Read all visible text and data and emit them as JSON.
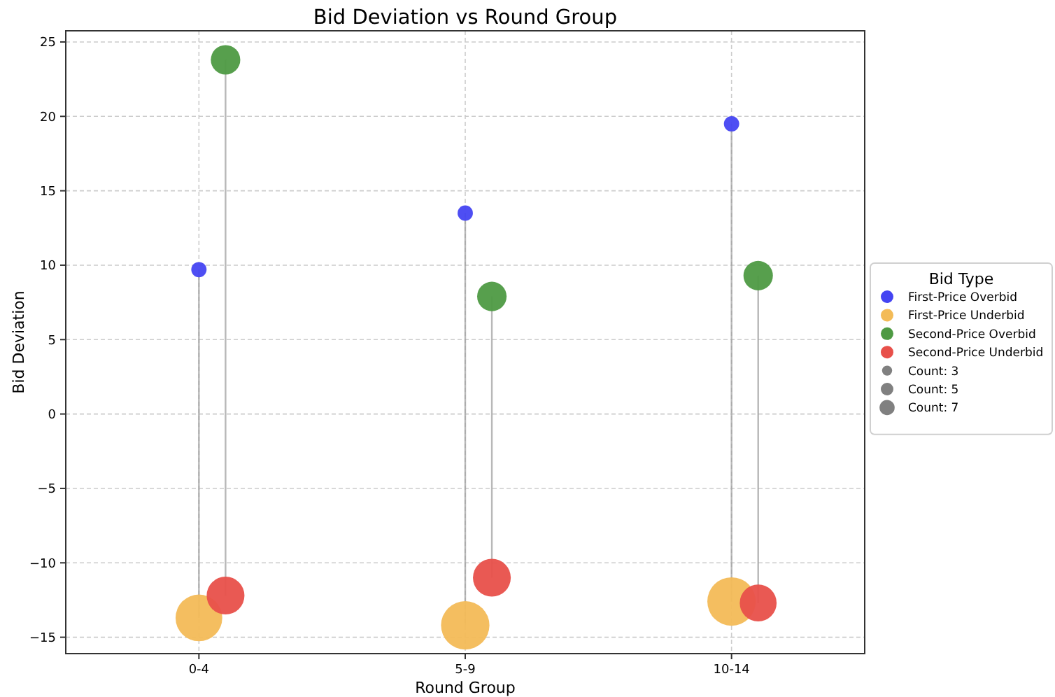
{
  "chart_data": {
    "type": "bubble",
    "title": "Bid Deviation vs Round Group",
    "xlabel": "Round Group",
    "ylabel": "Bid Deviation",
    "legend_title": "Bid Type",
    "categories": [
      "0-4",
      "5-9",
      "10-14"
    ],
    "series": [
      {
        "name": "First-Price Overbid",
        "color": "#4444f2",
        "values": [
          9.7,
          13.5,
          19.5
        ],
        "sizes": [
          0.1,
          0.1,
          0.1
        ]
      },
      {
        "name": "First-Price Underbid",
        "color": "#f3bb57",
        "values": [
          -13.7,
          -14.2,
          -12.6
        ],
        "sizes": [
          0.93,
          1,
          1
        ]
      },
      {
        "name": "Second-Price Overbid",
        "color": "#4e9a43",
        "values": [
          23.8,
          7.9,
          9.3
        ],
        "sizes": [
          0.37,
          0.37,
          0.37
        ]
      },
      {
        "name": "Second-Price Underbid",
        "color": "#e8504a",
        "values": [
          -12.2,
          -11.0,
          -12.7
        ],
        "sizes": [
          0.61,
          0.61,
          0.58
        ]
      }
    ],
    "annotations": [
      "Count: 3",
      "Count: 5",
      "Count: 7"
    ],
    "ylim": [
      -16.1,
      25.75
    ],
    "yticks": [
      {
        "value": -15,
        "label": "−15"
      },
      {
        "value": -10,
        "label": "−10"
      },
      {
        "value": -5,
        "label": "−5"
      },
      0,
      5,
      10,
      15,
      20,
      25
    ],
    "grid": true,
    "legend": "right"
  }
}
